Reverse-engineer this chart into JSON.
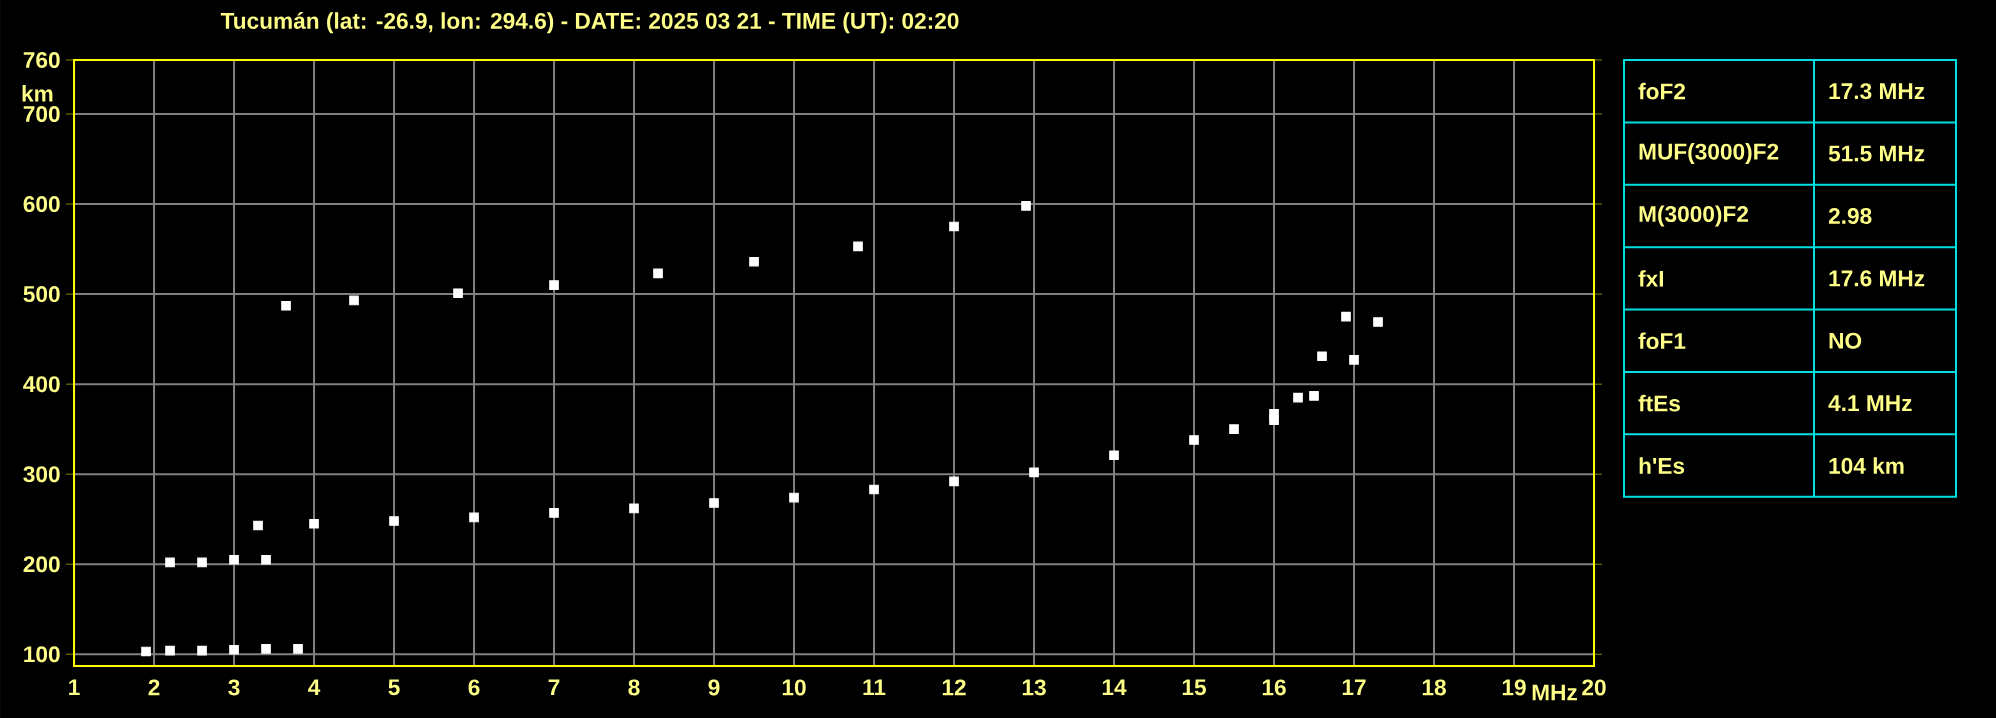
{
  "chart_data": [
    {
      "type": "scatter",
      "title": "Tucumán (lat: -26.9, lon: 294.6) - DATE: 2025 03 21 - TIME (UT): 02:20",
      "xlabel": "MHz",
      "ylabel": "km",
      "xlim": [
        1,
        20
      ],
      "ylim": [
        87,
        760
      ],
      "xticks": [
        1,
        2,
        3,
        4,
        5,
        6,
        7,
        8,
        9,
        10,
        11,
        12,
        13,
        14,
        15,
        16,
        17,
        18,
        19,
        20
      ],
      "yticks": [
        100,
        200,
        300,
        400,
        500,
        600,
        700,
        760
      ],
      "grid": true,
      "marker": "square",
      "series": [
        {
          "color": "#ffffff",
          "x": [
            1.9,
            2.2,
            2.6,
            3.0,
            3.4,
            3.8
          ],
          "values": [
            103,
            104,
            104,
            105,
            106,
            106
          ]
        },
        {
          "color": "#ffffff",
          "x": [
            2.2,
            2.6,
            3.0,
            3.4
          ],
          "values": [
            202,
            202,
            205,
            205
          ]
        },
        {
          "color": "#ffffff",
          "x": [
            3.3,
            4,
            5,
            6,
            7,
            8,
            9,
            10,
            11,
            12,
            13,
            14,
            15,
            15.5,
            16,
            16.3,
            16.6,
            16.9
          ],
          "values": [
            243,
            245,
            248,
            252,
            257,
            262,
            268,
            274,
            283,
            292,
            302,
            321,
            338,
            350,
            367,
            385,
            431,
            475
          ]
        },
        {
          "color": "#ffffff",
          "x": [
            16.0,
            16.5,
            17.0,
            17.3
          ],
          "values": [
            360,
            387,
            427,
            469
          ]
        },
        {
          "color": "#ffffff",
          "x": [
            3.65,
            4.5,
            5.8,
            7,
            8.3,
            9.5,
            10.8,
            12,
            12.9
          ],
          "values": [
            487,
            493,
            501,
            510,
            523,
            536,
            553,
            575,
            598
          ]
        }
      ]
    },
    {
      "type": "other",
      "annotations": [
        "foF2",
        "17.3 MHz",
        "MUF(3000)F2",
        "51.5 MHz",
        "M(3000)F2",
        "2.98",
        "fxI",
        "17.6 MHz",
        "foF1",
        "NO",
        "ftEs",
        "4.1 MHz",
        "h'Es",
        "104 km"
      ]
    }
  ]
}
